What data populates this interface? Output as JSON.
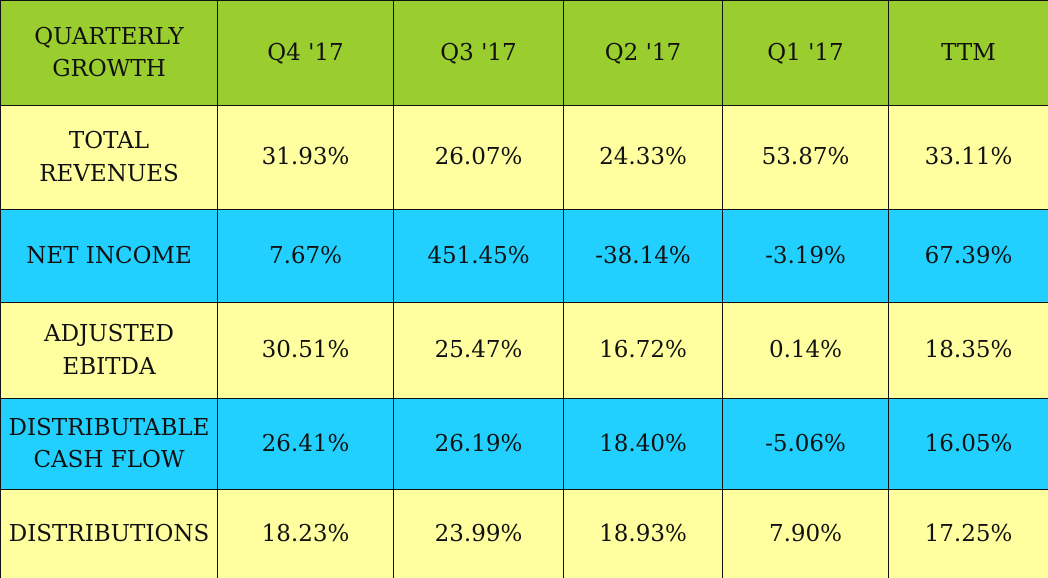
{
  "chart_data": {
    "type": "table",
    "header_color": "#9acd2e",
    "row_colors": [
      "#ffffa0",
      "#22d0ff",
      "#ffffa0",
      "#22d0ff",
      "#ffffa0"
    ],
    "columns": [
      "QUARTERLY\nGROWTH",
      "Q4 '17",
      "Q3 '17",
      "Q2 '17",
      "Q1 '17",
      "TTM"
    ],
    "rows": [
      {
        "label": "TOTAL\nREVENUES",
        "values": [
          "31.93%",
          "26.07%",
          "24.33%",
          "53.87%",
          "33.11%"
        ]
      },
      {
        "label": "NET INCOME",
        "values": [
          "7.67%",
          "451.45%",
          "-38.14%",
          "-3.19%",
          "67.39%"
        ]
      },
      {
        "label": "ADJUSTED\nEBITDA",
        "values": [
          "30.51%",
          "25.47%",
          "16.72%",
          "0.14%",
          "18.35%"
        ]
      },
      {
        "label": "DISTRIBUTABLE\nCASH FLOW",
        "values": [
          "26.41%",
          "26.19%",
          "18.40%",
          "-5.06%",
          "16.05%"
        ]
      },
      {
        "label": "DISTRIBUTIONS",
        "values": [
          "18.23%",
          "23.99%",
          "18.93%",
          "7.90%",
          "17.25%"
        ]
      }
    ]
  }
}
